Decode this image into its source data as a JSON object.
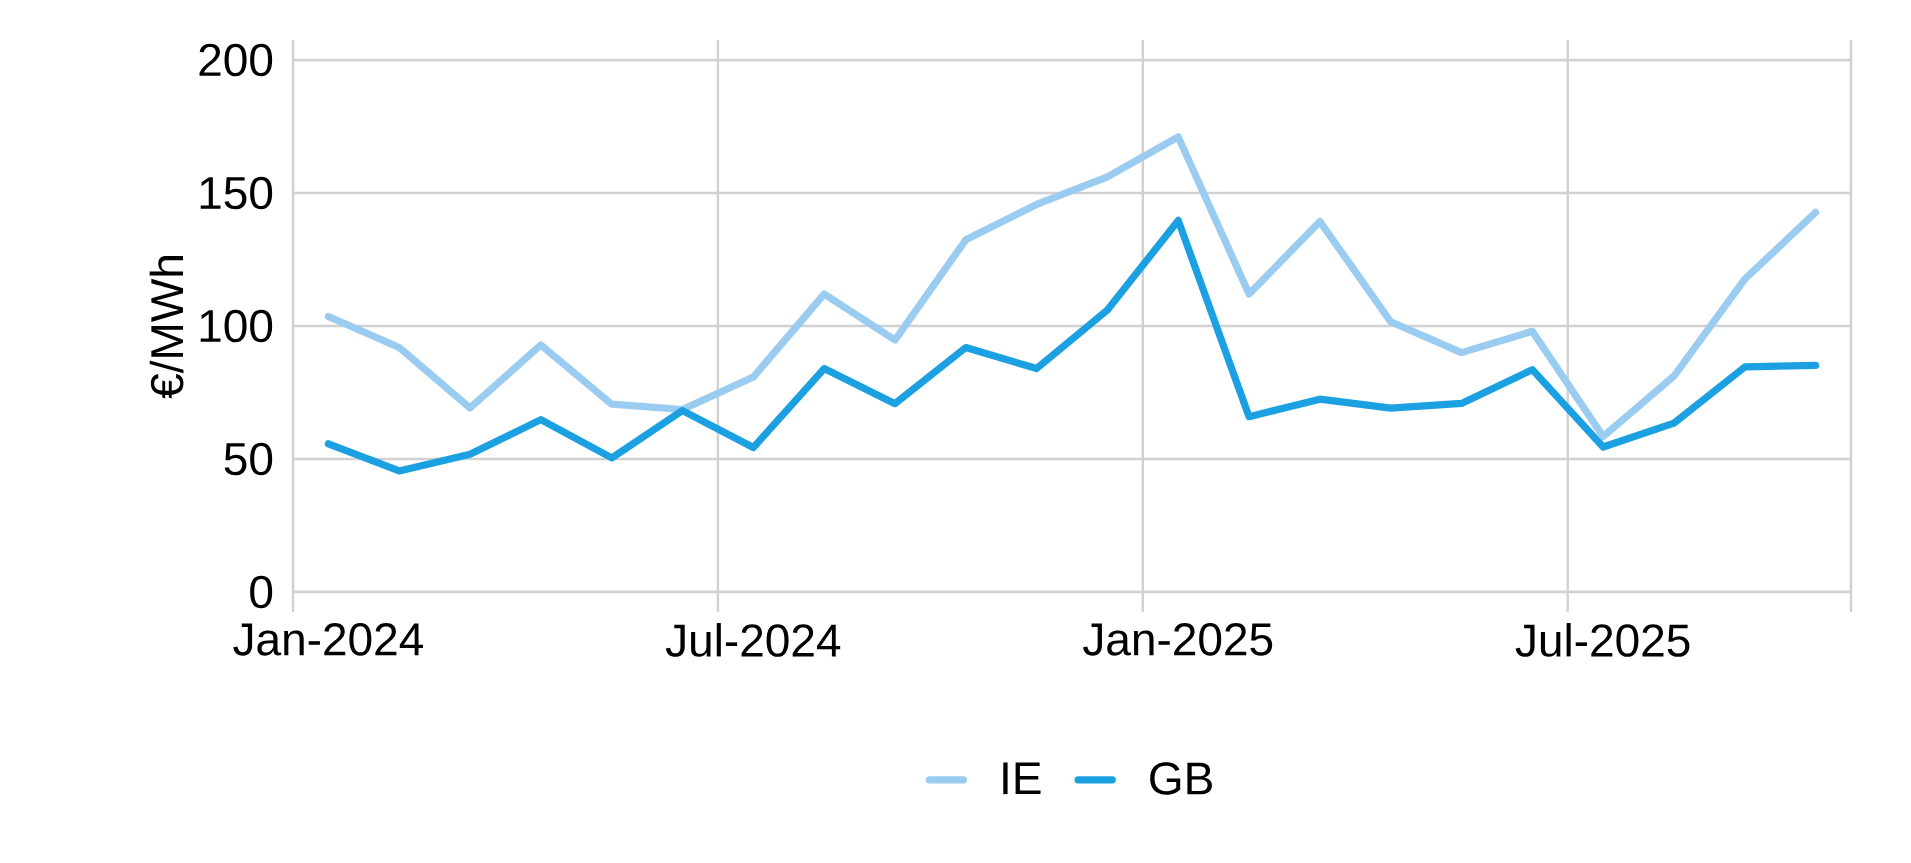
{
  "chart_data": {
    "type": "line",
    "ylabel": "€/MWh",
    "categories": [
      "Jan-2024",
      null,
      null,
      null,
      null,
      null,
      "Jul-2024",
      null,
      null,
      null,
      null,
      null,
      "Jan-2025",
      null,
      null,
      null,
      null,
      null,
      "Jul-2025",
      null,
      null,
      null
    ],
    "series": [
      {
        "name": "IE",
        "color": "#99ccf0",
        "values": [
          103.6,
          91.9,
          69.2,
          92.9,
          70.6,
          68.6,
          80.8,
          112,
          94.7,
          132.4,
          145.7,
          156.1,
          171.1,
          112,
          139.3,
          101.6,
          90,
          98,
          58.5,
          81.2,
          117.6,
          142.7
        ]
      },
      {
        "name": "GB",
        "color": "#1ba1e2",
        "values": [
          55.7,
          45.5,
          51.8,
          64.8,
          50.4,
          68.2,
          54.3,
          84,
          70.8,
          91.9,
          84,
          106,
          139.7,
          65.9,
          72.5,
          69.1,
          70.9,
          83.6,
          54.5,
          63.5,
          84.6,
          85.2
        ]
      }
    ],
    "ylim": [
      0,
      200
    ],
    "yticks": [
      0,
      50,
      100,
      150,
      200
    ],
    "grid": true,
    "legend": "bottom"
  }
}
